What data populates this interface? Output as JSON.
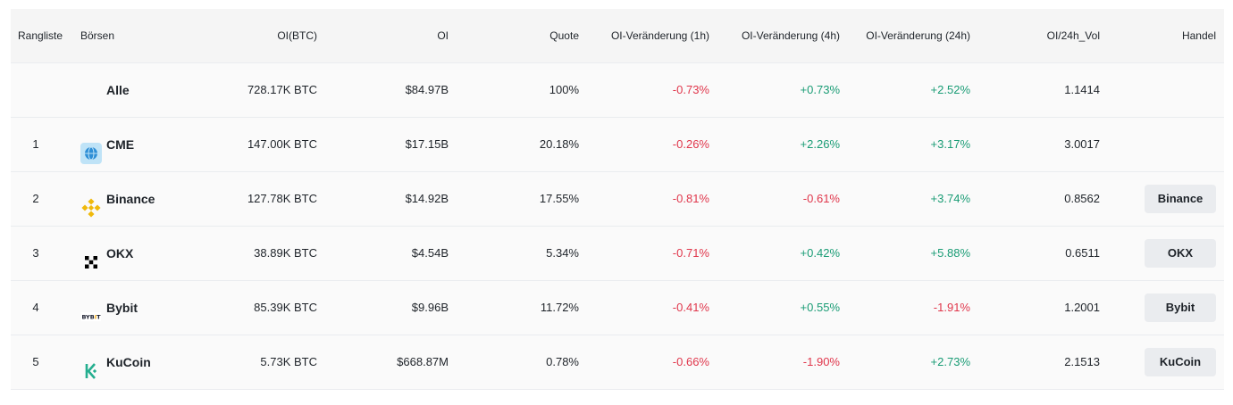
{
  "headers": {
    "rank": "Rangliste",
    "exchange": "Börsen",
    "oi_btc": "OI(BTC)",
    "oi": "OI",
    "quote": "Quote",
    "chg_1h": "OI-Veränderung (1h)",
    "chg_4h": "OI-Veränderung (4h)",
    "chg_24h": "OI-Veränderung (24h)",
    "oi_vol": "OI/24h_Vol",
    "trade": "Handel"
  },
  "colors": {
    "negative": "#e0364b",
    "positive": "#1a9c75"
  },
  "rows": [
    {
      "rank": "",
      "name": "Alle",
      "icon": "",
      "oi_btc": "728.17K BTC",
      "oi": "$84.97B",
      "quote": "100%",
      "chg_1h": "-0.73%",
      "chg_4h": "+0.73%",
      "chg_24h": "+2.52%",
      "oi_vol": "1.1414",
      "trade": ""
    },
    {
      "rank": "1",
      "name": "CME",
      "icon": "cme-logo-icon",
      "oi_btc": "147.00K BTC",
      "oi": "$17.15B",
      "quote": "20.18%",
      "chg_1h": "-0.26%",
      "chg_4h": "+2.26%",
      "chg_24h": "+3.17%",
      "oi_vol": "3.0017",
      "trade": ""
    },
    {
      "rank": "2",
      "name": "Binance",
      "icon": "binance-logo-icon",
      "oi_btc": "127.78K BTC",
      "oi": "$14.92B",
      "quote": "17.55%",
      "chg_1h": "-0.81%",
      "chg_4h": "-0.61%",
      "chg_24h": "+3.74%",
      "oi_vol": "0.8562",
      "trade": "Binance"
    },
    {
      "rank": "3",
      "name": "OKX",
      "icon": "okx-logo-icon",
      "oi_btc": "38.89K BTC",
      "oi": "$4.54B",
      "quote": "5.34%",
      "chg_1h": "-0.71%",
      "chg_4h": "+0.42%",
      "chg_24h": "+5.88%",
      "oi_vol": "0.6511",
      "trade": "OKX"
    },
    {
      "rank": "4",
      "name": "Bybit",
      "icon": "bybit-logo-icon",
      "oi_btc": "85.39K BTC",
      "oi": "$9.96B",
      "quote": "11.72%",
      "chg_1h": "-0.41%",
      "chg_4h": "+0.55%",
      "chg_24h": "-1.91%",
      "oi_vol": "1.2001",
      "trade": "Bybit"
    },
    {
      "rank": "5",
      "name": "KuCoin",
      "icon": "kucoin-logo-icon",
      "oi_btc": "5.73K BTC",
      "oi": "$668.87M",
      "quote": "0.78%",
      "chg_1h": "-0.66%",
      "chg_4h": "-1.90%",
      "chg_24h": "+2.73%",
      "oi_vol": "2.1513",
      "trade": "KuCoin"
    }
  ]
}
